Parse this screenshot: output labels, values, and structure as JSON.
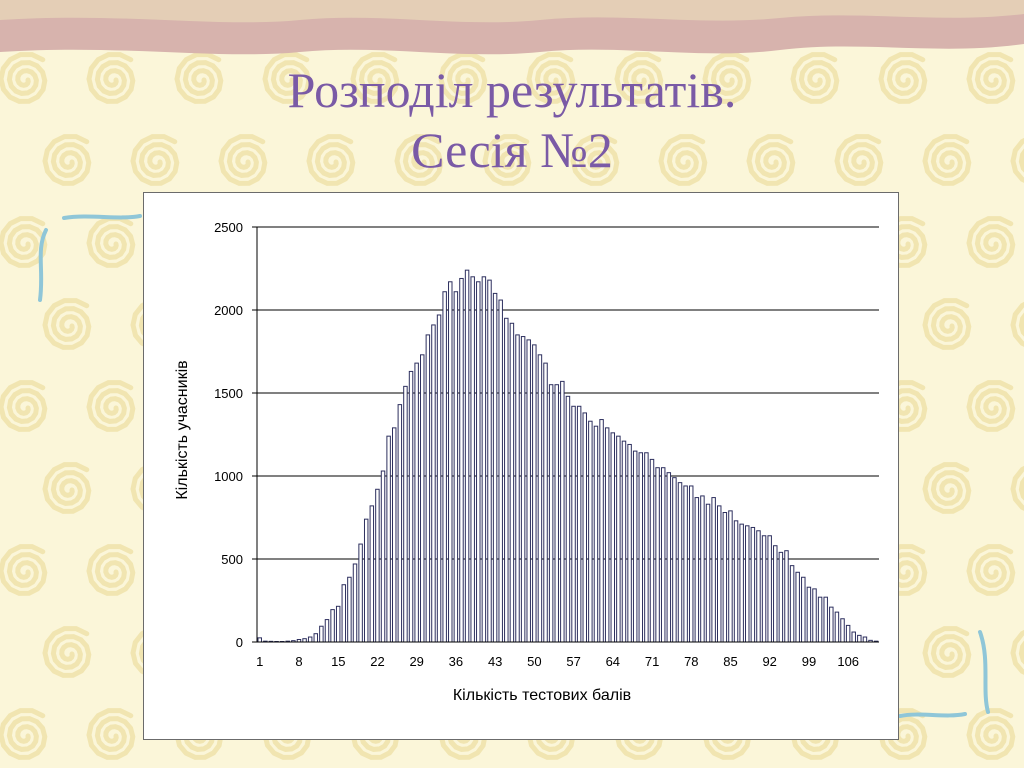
{
  "slide": {
    "title_line1": "Розподіл результатів.",
    "title_line2": "Сесія №2",
    "background_color": "#fbf6d9",
    "title_color": "#7a5aa6",
    "band_color": "#d7b3ad",
    "swirl_color": "#f1e5b1",
    "bracket_color": "#8fc6d8"
  },
  "chart_data": {
    "type": "bar",
    "xlabel": "Кількість тестових балів",
    "ylabel": "Кількість учасників",
    "ylim": [
      0,
      2500
    ],
    "yticks": [
      0,
      500,
      1000,
      1500,
      2000,
      2500
    ],
    "grid": true,
    "bar_color": "#2d2f5e",
    "categories": [
      1,
      2,
      3,
      4,
      5,
      6,
      7,
      8,
      9,
      10,
      11,
      12,
      13,
      14,
      15,
      16,
      17,
      18,
      19,
      20,
      21,
      22,
      23,
      24,
      25,
      26,
      27,
      28,
      29,
      30,
      31,
      32,
      33,
      34,
      35,
      36,
      37,
      38,
      39,
      40,
      41,
      42,
      43,
      44,
      45,
      46,
      47,
      48,
      49,
      50,
      51,
      52,
      53,
      54,
      55,
      56,
      57,
      58,
      59,
      60,
      61,
      62,
      63,
      64,
      65,
      66,
      67,
      68,
      69,
      70,
      71,
      72,
      73,
      74,
      75,
      76,
      77,
      78,
      79,
      80,
      81,
      82,
      83,
      84,
      85,
      86,
      87,
      88,
      89,
      90,
      91,
      92,
      93,
      94,
      95,
      96,
      97,
      98,
      99,
      100,
      101,
      102,
      103,
      104,
      105,
      106,
      107,
      108,
      109,
      110,
      111
    ],
    "x_tick_labels": [
      "1",
      "8",
      "15",
      "22",
      "29",
      "36",
      "43",
      "50",
      "57",
      "64",
      "71",
      "78",
      "85",
      "92",
      "99",
      "106"
    ],
    "values": [
      25,
      5,
      4,
      3,
      3,
      5,
      8,
      15,
      20,
      30,
      50,
      95,
      135,
      195,
      215,
      345,
      390,
      470,
      590,
      740,
      820,
      920,
      1030,
      1240,
      1290,
      1430,
      1540,
      1630,
      1680,
      1730,
      1850,
      1910,
      1970,
      2110,
      2170,
      2110,
      2190,
      2240,
      2200,
      2170,
      2200,
      2180,
      2100,
      2060,
      1950,
      1920,
      1850,
      1840,
      1820,
      1790,
      1730,
      1680,
      1550,
      1550,
      1570,
      1480,
      1420,
      1420,
      1380,
      1330,
      1300,
      1340,
      1290,
      1260,
      1240,
      1210,
      1190,
      1150,
      1140,
      1140,
      1100,
      1050,
      1050,
      1020,
      990,
      960,
      940,
      940,
      870,
      880,
      830,
      870,
      820,
      780,
      790,
      730,
      710,
      700,
      690,
      670,
      640,
      640,
      580,
      540,
      550,
      460,
      420,
      390,
      330,
      320,
      270,
      270,
      210,
      180,
      140,
      100,
      60,
      40,
      30,
      10,
      5
    ]
  }
}
